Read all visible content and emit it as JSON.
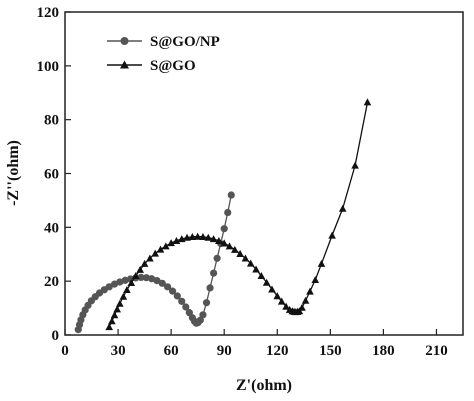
{
  "chart_data": {
    "type": "line",
    "title": "",
    "xlabel": "Z'(ohm)",
    "ylabel": "-Z''(ohm)",
    "xlim": [
      0,
      225
    ],
    "ylim": [
      0,
      120
    ],
    "xticks": [
      0,
      30,
      60,
      90,
      120,
      150,
      180,
      210
    ],
    "yticks": [
      0,
      20,
      40,
      60,
      80,
      100,
      120
    ],
    "xtick_labels": [
      "0",
      "30",
      "60",
      "90",
      "120",
      "150",
      "180",
      "210"
    ],
    "ytick_labels": [
      "0",
      "20",
      "40",
      "60",
      "80",
      "100",
      "120"
    ],
    "grid": false,
    "legend_position": "top-left",
    "series": [
      {
        "name": "S@GO/NP",
        "marker": "circle",
        "color": "#555555",
        "x": [
          7.5,
          8.2,
          9.0,
          10.1,
          11.4,
          13.0,
          14.9,
          17.1,
          19.5,
          22.2,
          25.0,
          28.0,
          31.0,
          34.0,
          37.0,
          40.0,
          43.0,
          46.0,
          49.0,
          52.0,
          55.0,
          58.0,
          60.8,
          63.5,
          66.0,
          68.3,
          70.3,
          72.0,
          73.2,
          74.2,
          75.2,
          76.5,
          78.0,
          80.0,
          82.0,
          84.0,
          86.0,
          88.0,
          90.0,
          92.0,
          94.0
        ],
        "y": [
          2.0,
          3.8,
          5.6,
          7.5,
          9.3,
          11.0,
          12.7,
          14.2,
          15.6,
          16.8,
          17.9,
          18.9,
          19.7,
          20.3,
          20.8,
          21.2,
          21.4,
          21.3,
          20.9,
          20.2,
          19.2,
          17.9,
          16.3,
          14.5,
          12.5,
          10.4,
          8.3,
          6.4,
          5.1,
          4.4,
          4.6,
          5.5,
          7.5,
          12.0,
          17.5,
          23.0,
          28.5,
          34.0,
          39.5,
          45.5,
          52.0
        ]
      },
      {
        "name": "S@GO",
        "marker": "triangle",
        "color": "#111111",
        "x": [
          25.0,
          26.5,
          28.0,
          29.5,
          31.0,
          33.0,
          35.0,
          37.5,
          40.0,
          42.5,
          45.0,
          48.0,
          51.0,
          54.0,
          57.0,
          60.0,
          63.0,
          66.0,
          69.0,
          72.0,
          75.0,
          78.0,
          81.0,
          84.0,
          87.0,
          90.0,
          93.0,
          96.0,
          99.0,
          102.0,
          105.0,
          108.0,
          111.0,
          114.0,
          117.0,
          120.0,
          122.5,
          125.0,
          127.0,
          128.5,
          129.5,
          130.5,
          131.5,
          132.5,
          134.0,
          136.0,
          138.5,
          141.5,
          145.0,
          151.0,
          157.0,
          164.0,
          171.0
        ],
        "y": [
          3.0,
          5.2,
          7.4,
          9.6,
          11.7,
          14.3,
          16.8,
          19.4,
          22.0,
          24.3,
          26.5,
          28.5,
          30.3,
          31.8,
          33.0,
          34.2,
          35.0,
          35.7,
          36.2,
          36.5,
          36.6,
          36.5,
          36.2,
          35.7,
          35.0,
          34.1,
          33.0,
          31.7,
          30.2,
          28.5,
          26.6,
          24.4,
          22.0,
          19.5,
          17.0,
          14.5,
          12.5,
          10.6,
          9.4,
          8.9,
          8.7,
          8.6,
          8.7,
          8.9,
          10.2,
          12.8,
          16.2,
          20.5,
          26.5,
          37.0,
          47.0,
          63.0,
          86.5
        ]
      }
    ]
  }
}
